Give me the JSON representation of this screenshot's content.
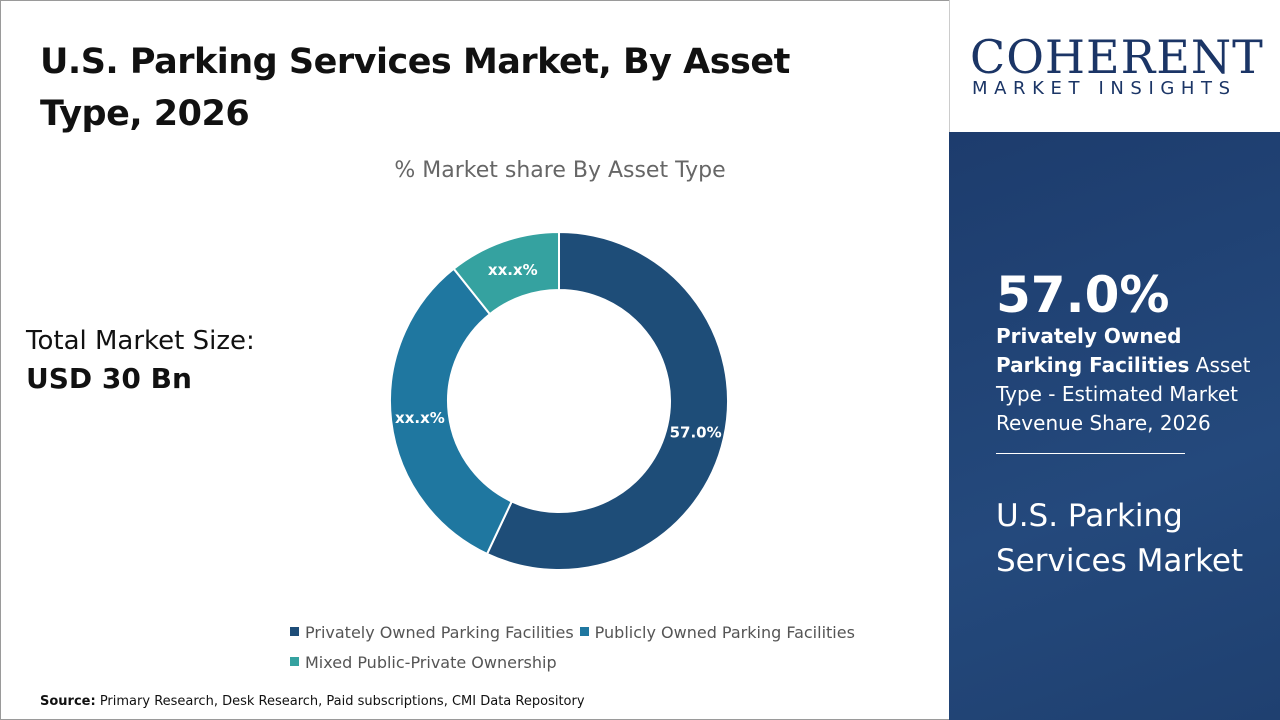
{
  "header": {
    "title": "U.S. Parking Services Market, By Asset Type, 2026"
  },
  "total": {
    "label": "Total Market Size:",
    "value": "USD 30 Bn"
  },
  "source": {
    "label": "Source:",
    "text": " Primary Research, Desk Research, Paid subscriptions, CMI Data Repository"
  },
  "logo": {
    "top": "COHERENT",
    "bottom": "MARKET INSIGHTS"
  },
  "sidebar": {
    "highlight_value": "57.0%",
    "highlight_bold": "Privately Owned Parking Facilities",
    "highlight_text": " Asset Type - Estimated Market Revenue Share, 2026",
    "market_name": "U.S. Parking Services Market"
  },
  "chart_data": {
    "type": "pie",
    "donut": true,
    "title": "% Market share By Asset Type",
    "categories": [
      "Privately Owned Parking Facilities",
      "Publicly Owned Parking Facilities",
      "Mixed Public-Private Ownership"
    ],
    "values": [
      57.0,
      32.3,
      10.7
    ],
    "data_labels": [
      "57.0%",
      "xx.x%",
      "xx.x%"
    ],
    "colors": [
      "#1e4d78",
      "#1f77a0",
      "#35a2a0"
    ],
    "legend_position": "bottom"
  }
}
